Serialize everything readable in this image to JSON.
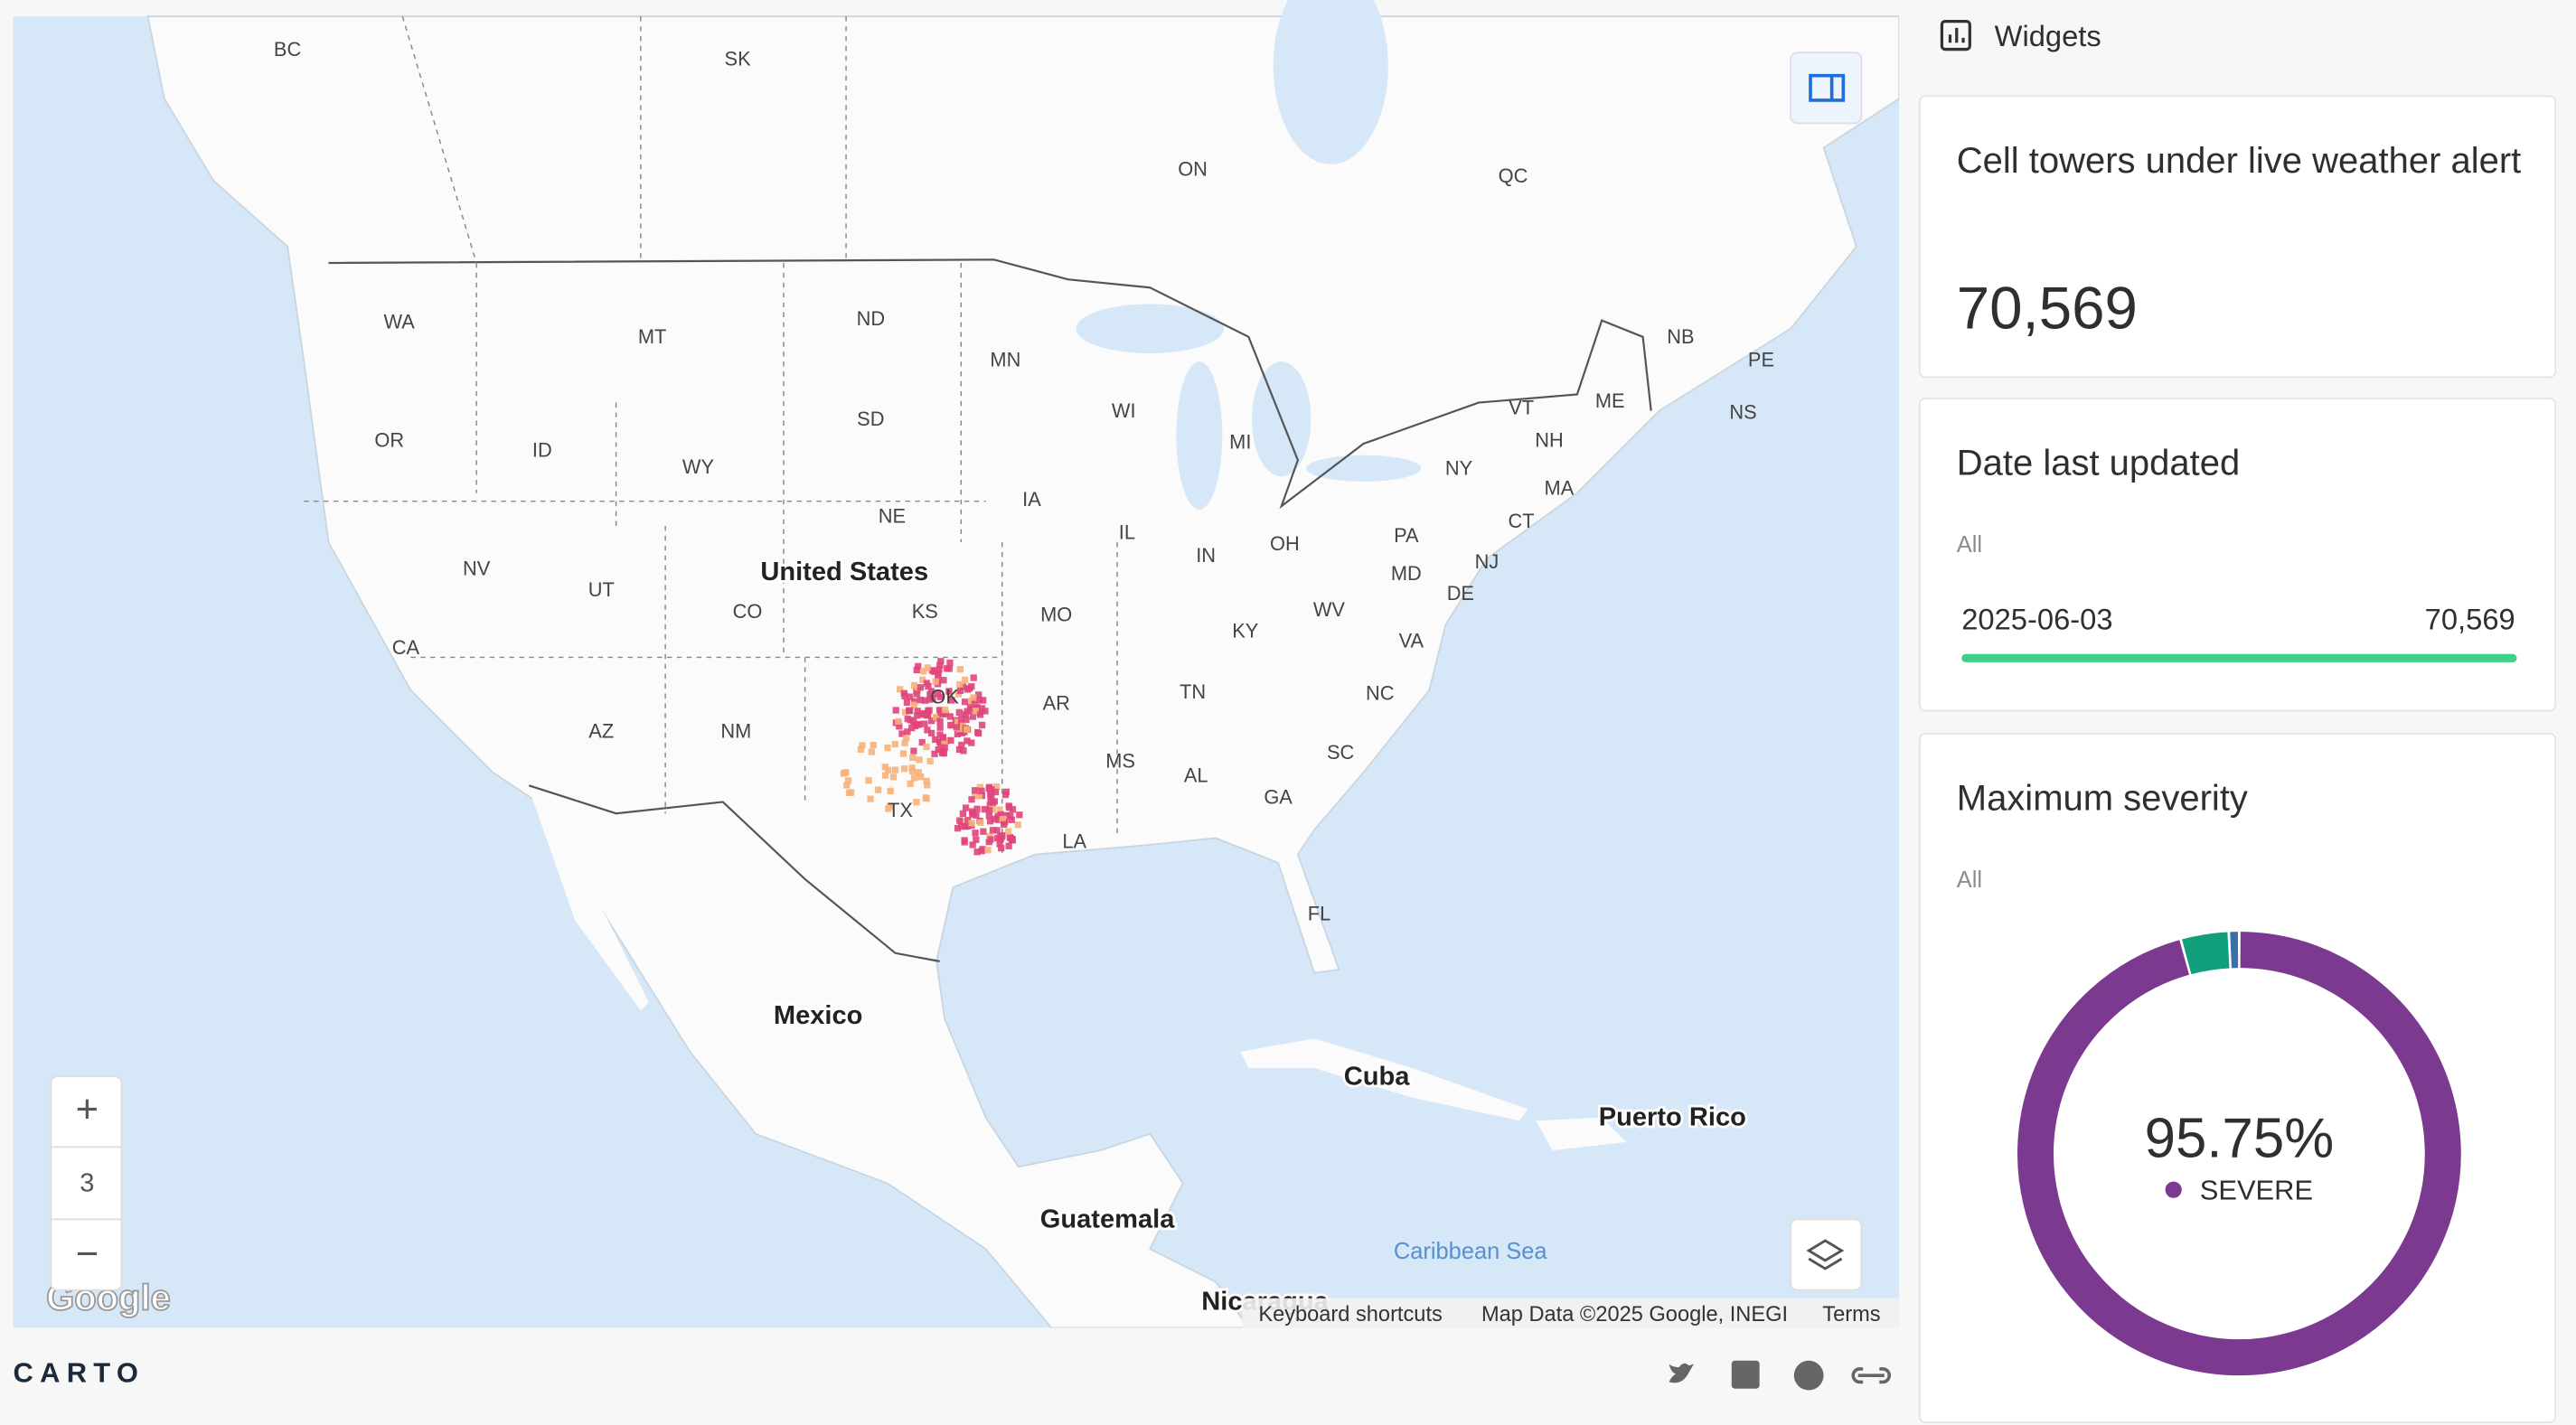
{
  "map": {
    "states": [
      "BC",
      "SK",
      "ON",
      "QC",
      "WA",
      "MT",
      "ND",
      "MN",
      "WI",
      "MI",
      "NB",
      "PE",
      "NS",
      "VT",
      "ME",
      "NH",
      "NY",
      "MA",
      "CT",
      "OR",
      "ID",
      "WY",
      "SD",
      "IA",
      "NE",
      "PA",
      "NJ",
      "DE",
      "MD",
      "IL",
      "IN",
      "OH",
      "WV",
      "VA",
      "NV",
      "UT",
      "CO",
      "KS",
      "MO",
      "KY",
      "CA",
      "AZ",
      "NM",
      "OK",
      "AR",
      "TN",
      "NC",
      "SC",
      "MS",
      "AL",
      "GA",
      "TX",
      "LA",
      "FL"
    ],
    "places": [
      "United States",
      "Mexico",
      "Cuba",
      "Puerto Rico",
      "Guatemala",
      "Nicaragua"
    ],
    "water": [
      "Caribbean Sea"
    ],
    "zoom_in": "+",
    "zoom": 3,
    "zoom_out": "−",
    "google_logo": "Google",
    "attribution": [
      "Keyboard shortcuts",
      "Map Data ©2025 Google, INEGI",
      "Terms"
    ]
  },
  "sidebar": {
    "title": "Widgets",
    "widgets": [
      {
        "title": "Cell towers under live weather alert",
        "value": 70569,
        "value_label": "70,569"
      },
      {
        "title": "Date last updated",
        "filter": "All",
        "rows": [
          {
            "category": "2025-06-03",
            "value": 70569,
            "value_label": "70,569"
          }
        ],
        "color": "#3fd08a"
      },
      {
        "title": "Maximum severity",
        "filter": "All",
        "chart_data": {
          "type": "donut",
          "categories": [
            "SEVERE",
            null,
            null
          ],
          "values": [
            95.75,
            3.5,
            0.75
          ],
          "value_labels": [
            "95.75%",
            null,
            null
          ],
          "colors": [
            "#7b3a8f",
            "#12a07c",
            "#3a6fa8"
          ]
        }
      }
    ]
  },
  "footer": {
    "logo": "CARTO"
  }
}
